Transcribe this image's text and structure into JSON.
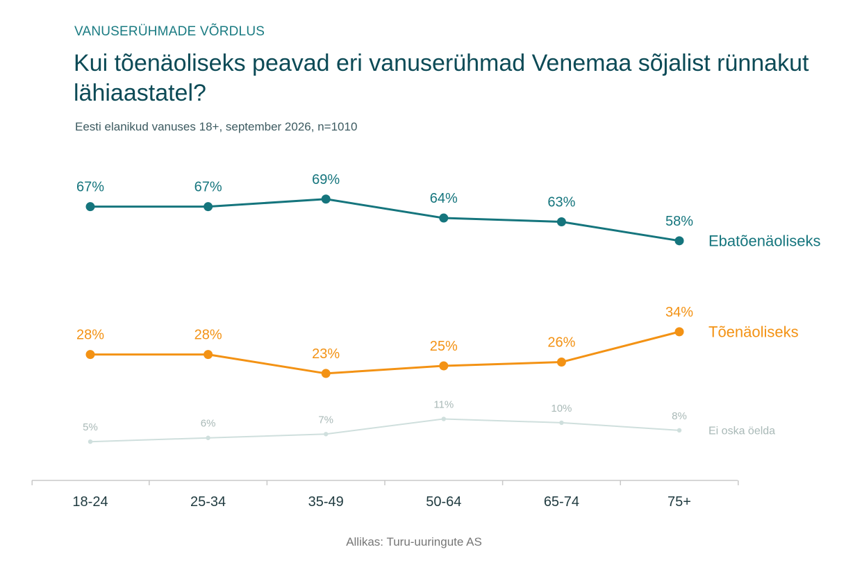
{
  "header": {
    "kicker": "VANUSERÜHMADE VÕRDLUS",
    "title": "Kui tõenäoliseks peavad eri vanuserühmad Venemaa sõjalist rünnakut lähiaastatel?",
    "subtitle": "Eesti elanikud vanuses 18+, september 2026, n=1010"
  },
  "footer": {
    "source": "Allikas: Turu-uuringute AS"
  },
  "chart_data": {
    "type": "line",
    "title": "Kui tõenäoliseks peavad eri vanuserühmad Venemaa sõjalist rünnakut lähiaastatel?",
    "subtitle": "Eesti elanikud vanuses 18+, september 2026, n=1010",
    "categories": [
      "18-24",
      "25-34",
      "35-49",
      "50-64",
      "65-74",
      "75+"
    ],
    "value_suffix": "%",
    "ylim": [
      0,
      100
    ],
    "grid": false,
    "legend": "direct labels at right end of lines",
    "series": [
      {
        "name": "Ebatõenäoliseks",
        "values": [
          67,
          67,
          69,
          64,
          63,
          58
        ],
        "color": "#15757d"
      },
      {
        "name": "Tõenäoliseks",
        "values": [
          28,
          28,
          23,
          25,
          26,
          34
        ],
        "color": "#f39214"
      },
      {
        "name": "Ei oska öelda",
        "values": [
          5,
          6,
          7,
          11,
          10,
          8
        ],
        "color": "#cfdfdd",
        "label_color": "#a9b9b7"
      }
    ]
  }
}
